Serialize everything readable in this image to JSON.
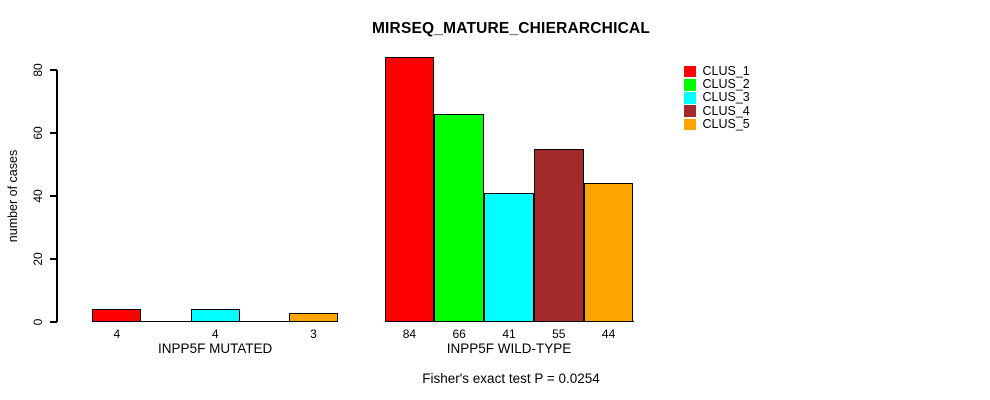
{
  "chart_data": {
    "type": "bar",
    "title": "MIRSEQ_MATURE_CHIERARCHICAL",
    "ylabel": "number of cases",
    "xlabel": "",
    "yticks": [
      0,
      20,
      40,
      60,
      80
    ],
    "ylim": [
      0,
      88
    ],
    "grid": false,
    "legend_position": "top-right",
    "annotation": "Fisher's exact test P = 0.0254",
    "clusters": [
      {
        "name": "CLUS_1",
        "color": "#FF0000"
      },
      {
        "name": "CLUS_2",
        "color": "#00FF00"
      },
      {
        "name": "CLUS_3",
        "color": "#00FFFF"
      },
      {
        "name": "CLUS_4",
        "color": "#A52A2A"
      },
      {
        "name": "CLUS_5",
        "color": "#FFA500"
      }
    ],
    "groups": [
      {
        "label": "INPP5F MUTATED",
        "values": [
          4,
          0,
          4,
          0,
          3
        ],
        "bar_labels": [
          "4",
          "",
          "4",
          "",
          "3"
        ]
      },
      {
        "label": "INPP5F WILD-TYPE",
        "values": [
          84,
          66,
          41,
          55,
          44
        ],
        "bar_labels": [
          "84",
          "66",
          "41",
          "55",
          "44"
        ]
      }
    ]
  }
}
